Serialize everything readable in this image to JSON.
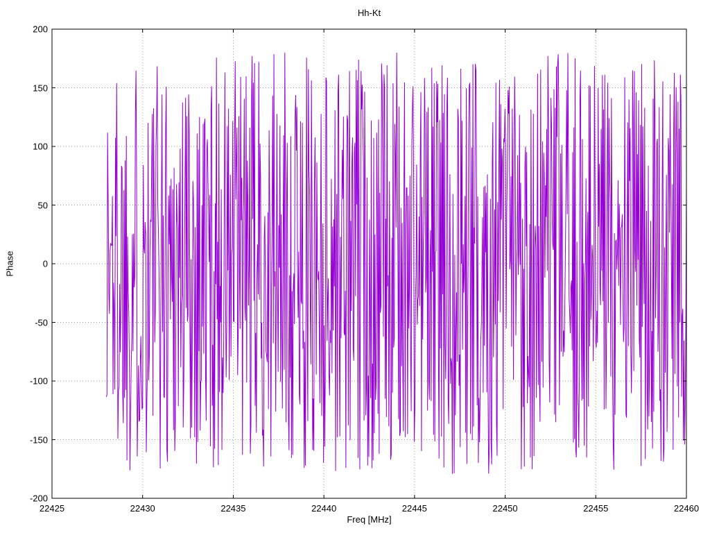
{
  "title": "Hh-Kt",
  "axes": {
    "x_label": "Freq [MHz]",
    "y_label": "Phase",
    "x_tick_labels": [
      "22425",
      "22430",
      "22435",
      "22440",
      "22445",
      "22450",
      "22455",
      "22460"
    ],
    "y_tick_labels": [
      "-200",
      "-150",
      "-100",
      "-50",
      "0",
      "50",
      "100",
      "150",
      "200"
    ]
  },
  "chart_data": {
    "type": "line",
    "title": "Hh-Kt",
    "xlabel": "Freq [MHz]",
    "ylabel": "Phase",
    "xlim": [
      22425,
      22460
    ],
    "ylim": [
      -200,
      200
    ],
    "x_ticks": [
      22425,
      22430,
      22435,
      22440,
      22445,
      22450,
      22455,
      22460
    ],
    "y_ticks": [
      -200,
      -150,
      -100,
      -50,
      0,
      50,
      100,
      150,
      200
    ],
    "grid": true,
    "grid_style": "dotted",
    "legend": false,
    "series": [
      {
        "name": "Hh-Kt phase",
        "color": "#9400D3",
        "x_start": 22428,
        "x_end": 22460,
        "n_points": 960,
        "y_min": -180,
        "y_max": 180,
        "pattern": "wrapped-phase-noise",
        "seed": 1337
      }
    ],
    "colors": {
      "trace": "#9400D3",
      "grid": "#9a9a9a",
      "border": "#000000",
      "background": "#ffffff"
    }
  }
}
